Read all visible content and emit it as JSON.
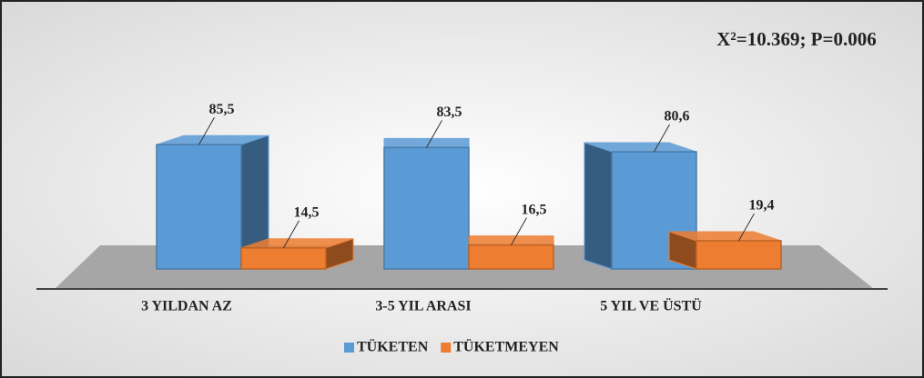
{
  "chart_data": {
    "type": "bar3d",
    "annotation": "X²=10.369; P=0.006",
    "categories": [
      "3 YILDAN AZ",
      "3-5 YIL ARASI",
      "5 YIL VE ÜSTÜ"
    ],
    "series": [
      {
        "name": "TÜKETEN",
        "color": "#5b9bd5",
        "values": [
          85.5,
          83.5,
          80.6
        ],
        "value_labels": [
          "85,5",
          "83,5",
          "80,6"
        ]
      },
      {
        "name": "TÜKETMEYEN",
        "color": "#ed7d31",
        "values": [
          14.5,
          16.5,
          19.4
        ],
        "value_labels": [
          "14,5",
          "16,5",
          "19,4"
        ]
      }
    ],
    "ylim": [
      0,
      100
    ]
  }
}
